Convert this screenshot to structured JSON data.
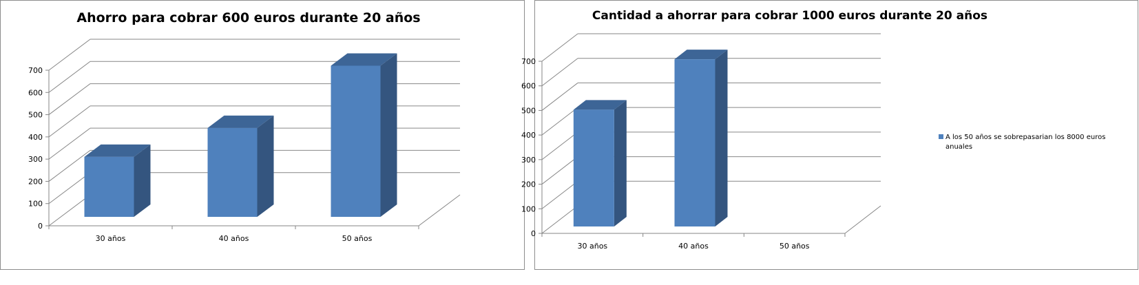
{
  "colors": {
    "bar_front": "#4f81bd",
    "bar_side": "#34557f",
    "bar_top": "#3d6596",
    "grid": "#868686",
    "axis": "#868686"
  },
  "chart_data": [
    {
      "type": "bar",
      "title": "Ahorro para cobrar 600 euros durante 20 años",
      "categories": [
        "30 años",
        "40 años",
        "50 años"
      ],
      "values": [
        270,
        400,
        680
      ],
      "ylim": [
        0,
        700
      ],
      "yticks": [
        0,
        100,
        200,
        300,
        400,
        500,
        600,
        700
      ],
      "xlabel": "",
      "ylabel": "",
      "grid": true,
      "style": "3d-column",
      "legend": null
    },
    {
      "type": "bar",
      "title": "Cantidad a ahorrar para cobrar 1000 euros durante 20 años",
      "categories": [
        "30 años",
        "40 años",
        "50 años"
      ],
      "values": [
        475,
        680,
        null
      ],
      "ylim": [
        0,
        700
      ],
      "yticks": [
        0,
        100,
        200,
        300,
        400,
        500,
        600,
        700
      ],
      "xlabel": "",
      "ylabel": "",
      "grid": true,
      "style": "3d-column",
      "legend": {
        "placement": "right",
        "entries": [
          "A los 50 años se sobrepasarian los 8000 euros anuales"
        ]
      }
    }
  ]
}
